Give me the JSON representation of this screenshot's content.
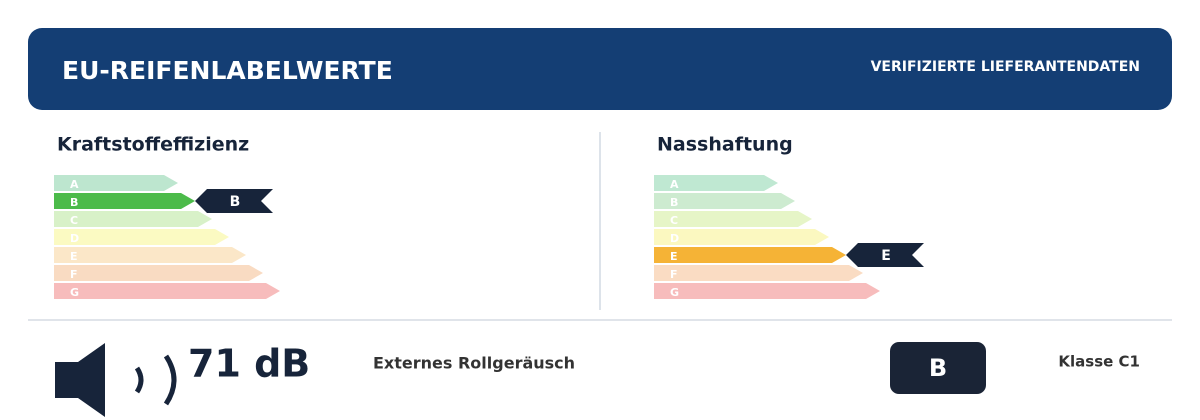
{
  "header": {
    "title": "EU-REIFENLABELWERTE",
    "subtitle": "VERIFIZIERTE LIEFERANTENDATEN"
  },
  "sections": [
    {
      "title": "Kraftstoffeffizienz",
      "classes": [
        "A",
        "B",
        "C",
        "D",
        "E",
        "F",
        "G"
      ],
      "rating": "B"
    },
    {
      "title": "Nasshaftung",
      "classes": [
        "A",
        "B",
        "C",
        "D",
        "E",
        "F",
        "G"
      ],
      "rating": "E"
    }
  ],
  "noise": {
    "value": "71 dB",
    "label": "Externes Rollgeräusch",
    "class": "B",
    "tyre_class": "Klasse C1"
  }
}
